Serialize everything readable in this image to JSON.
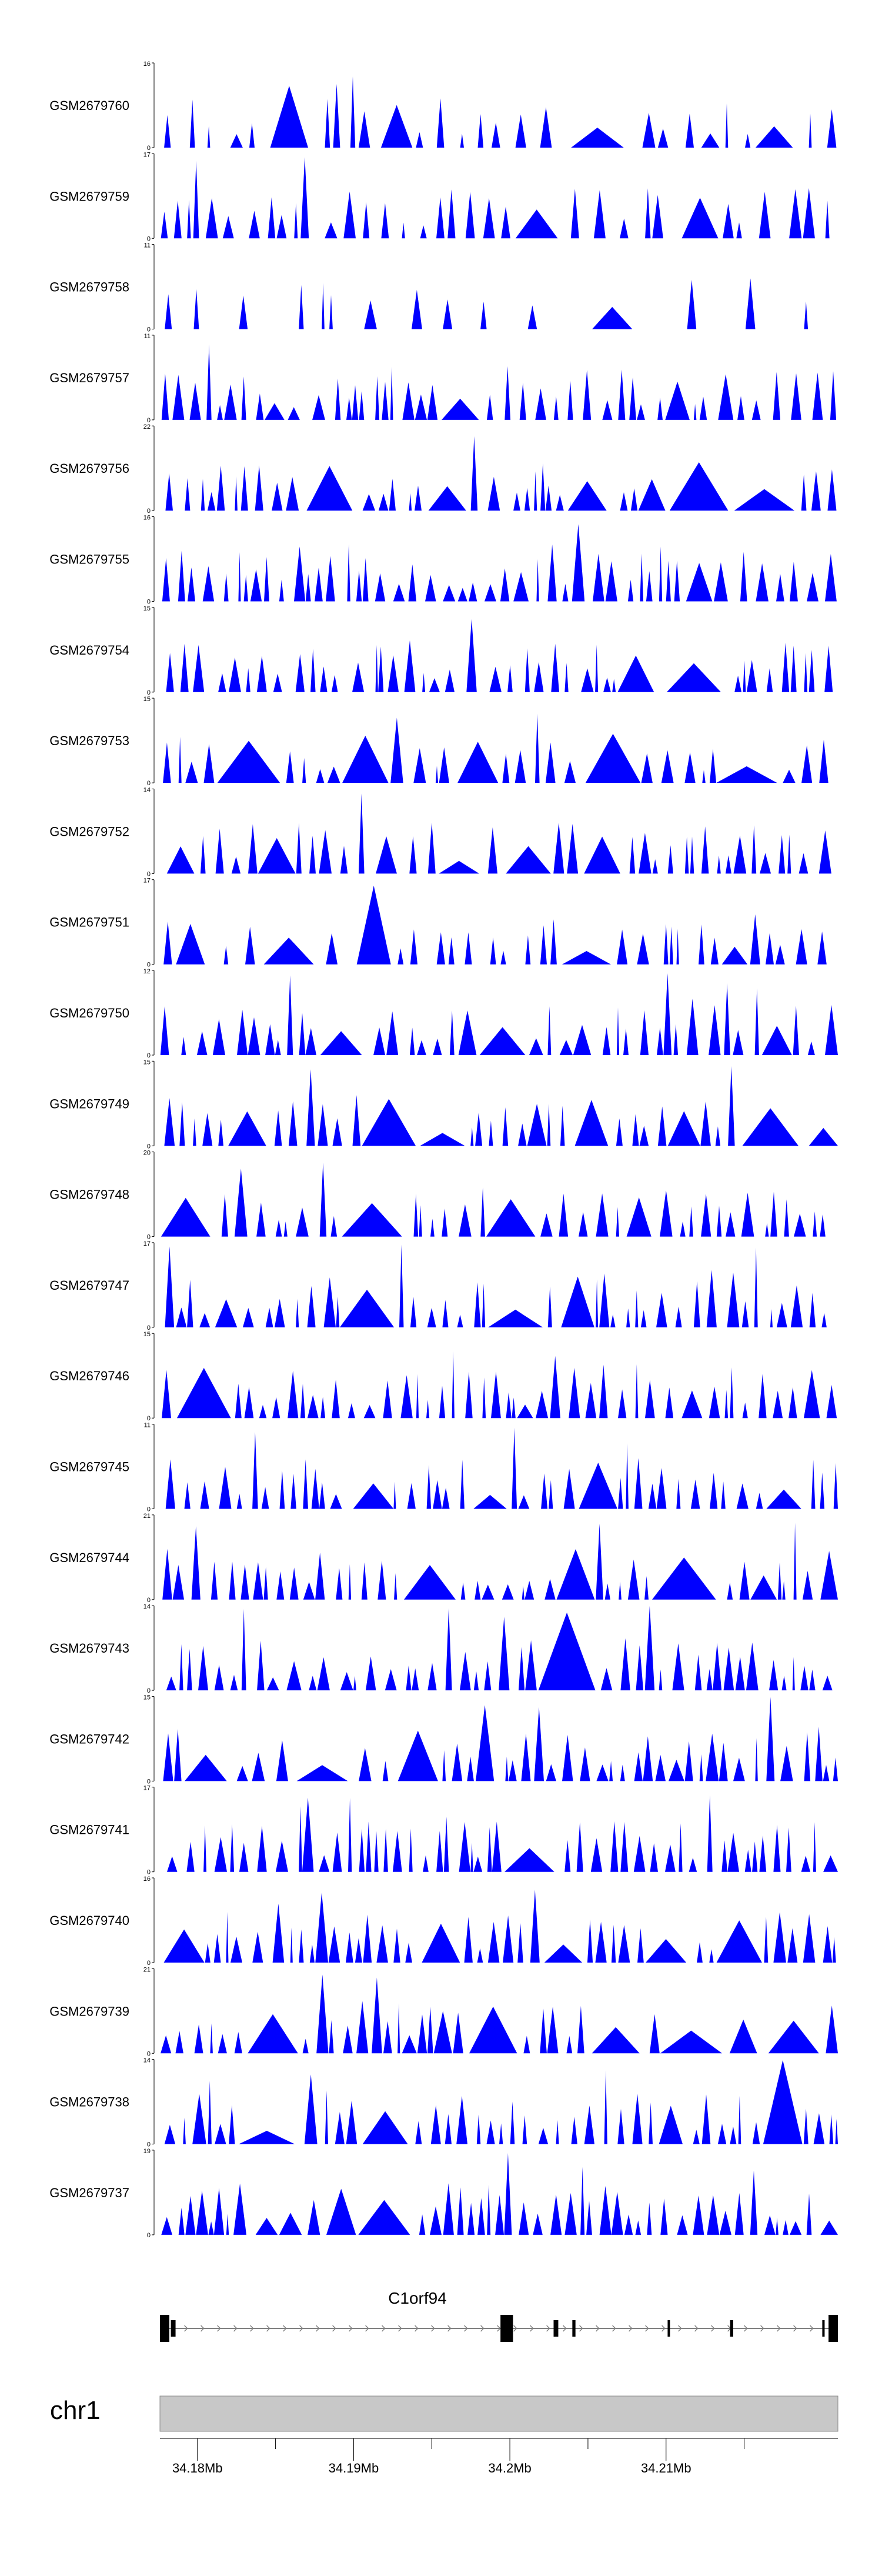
{
  "chart_data": {
    "type": "area",
    "description_free": true,
    "colors": {
      "signal": "#0000ff",
      "gene": "#000000",
      "intron": "#808080",
      "ideogram": "#c8c8c8",
      "text": "#000000"
    },
    "chromosome": "chr1",
    "gene": {
      "name": "C1orf94",
      "strand": "+",
      "exons": [
        {
          "start": 34.1726,
          "end": 34.1732
        },
        {
          "start": 34.1733,
          "end": 34.1736
        },
        {
          "start": 34.1944,
          "end": 34.1952
        },
        {
          "start": 34.1978,
          "end": 34.1981
        },
        {
          "start": 34.199,
          "end": 34.1992
        },
        {
          "start": 34.2051,
          "end": 34.2052
        },
        {
          "start": 34.2091,
          "end": 34.2093
        },
        {
          "start": 34.215,
          "end": 34.2151
        },
        {
          "start": 34.2154,
          "end": 34.216
        }
      ]
    },
    "x_range_mb": [
      34.1726,
      34.216
    ],
    "x_ticks": [
      {
        "value": 34.175,
        "label": "34.18Mb"
      },
      {
        "value": 34.18,
        "label": ""
      },
      {
        "value": 34.185,
        "label": "34.19Mb"
      },
      {
        "value": 34.19,
        "label": ""
      },
      {
        "value": 34.195,
        "label": "34.2Mb"
      },
      {
        "value": 34.2,
        "label": ""
      },
      {
        "value": 34.205,
        "label": "34.21Mb"
      },
      {
        "value": 34.21,
        "label": ""
      }
    ],
    "tracks": [
      {
        "name": "GSM2679760",
        "ymax": "16",
        "ylim": [
          0,
          16
        ],
        "density": 0.8,
        "seed": 760
      },
      {
        "name": "GSM2679759",
        "ymax": "17",
        "ylim": [
          0,
          17
        ],
        "density": 0.9,
        "seed": 759
      },
      {
        "name": "GSM2679758",
        "ymax": "11",
        "ylim": [
          0,
          11
        ],
        "density": 0.3,
        "seed": 758
      },
      {
        "name": "GSM2679757",
        "ymax": "11",
        "ylim": [
          0,
          11
        ],
        "density": 1.4,
        "seed": 757
      },
      {
        "name": "GSM2679756",
        "ymax": "22",
        "ylim": [
          0,
          22
        ],
        "density": 1.3,
        "seed": 756
      },
      {
        "name": "GSM2679755",
        "ymax": "16",
        "ylim": [
          0,
          16
        ],
        "density": 1.4,
        "seed": 755
      },
      {
        "name": "GSM2679754",
        "ymax": "15",
        "ylim": [
          0,
          15
        ],
        "density": 1.2,
        "seed": 754
      },
      {
        "name": "GSM2679753",
        "ymax": "15",
        "ylim": [
          0,
          15
        ],
        "density": 1.6,
        "seed": 753
      },
      {
        "name": "GSM2679752",
        "ymax": "14",
        "ylim": [
          0,
          14
        ],
        "density": 1.4,
        "seed": 752
      },
      {
        "name": "GSM2679751",
        "ymax": "17",
        "ylim": [
          0,
          17
        ],
        "density": 0.9,
        "seed": 751
      },
      {
        "name": "GSM2679750",
        "ymax": "12",
        "ylim": [
          0,
          12
        ],
        "density": 1.4,
        "seed": 750
      },
      {
        "name": "GSM2679749",
        "ymax": "15",
        "ylim": [
          0,
          15
        ],
        "density": 1.5,
        "seed": 749
      },
      {
        "name": "GSM2679748",
        "ymax": "20",
        "ylim": [
          0,
          20
        ],
        "density": 1.5,
        "seed": 748
      },
      {
        "name": "GSM2679747",
        "ymax": "17",
        "ylim": [
          0,
          17
        ],
        "density": 1.4,
        "seed": 747
      },
      {
        "name": "GSM2679746",
        "ymax": "15",
        "ylim": [
          0,
          15
        ],
        "density": 1.6,
        "seed": 746
      },
      {
        "name": "GSM2679745",
        "ymax": "11",
        "ylim": [
          0,
          11
        ],
        "density": 1.5,
        "seed": 745
      },
      {
        "name": "GSM2679744",
        "ymax": "21",
        "ylim": [
          0,
          21
        ],
        "density": 1.4,
        "seed": 744
      },
      {
        "name": "GSM2679743",
        "ymax": "14",
        "ylim": [
          0,
          14
        ],
        "density": 1.6,
        "seed": 743
      },
      {
        "name": "GSM2679742",
        "ymax": "15",
        "ylim": [
          0,
          15
        ],
        "density": 1.5,
        "seed": 742
      },
      {
        "name": "GSM2679741",
        "ymax": "17",
        "ylim": [
          0,
          17
        ],
        "density": 1.6,
        "seed": 741
      },
      {
        "name": "GSM2679740",
        "ymax": "16",
        "ylim": [
          0,
          16
        ],
        "density": 1.6,
        "seed": 740
      },
      {
        "name": "GSM2679739",
        "ymax": "21",
        "ylim": [
          0,
          21
        ],
        "density": 1.5,
        "seed": 739
      },
      {
        "name": "GSM2679738",
        "ymax": "14",
        "ylim": [
          0,
          14
        ],
        "density": 1.4,
        "seed": 738
      },
      {
        "name": "GSM2679737",
        "ymax": "19",
        "ylim": [
          0,
          19
        ],
        "density": 1.8,
        "seed": 737
      }
    ]
  }
}
